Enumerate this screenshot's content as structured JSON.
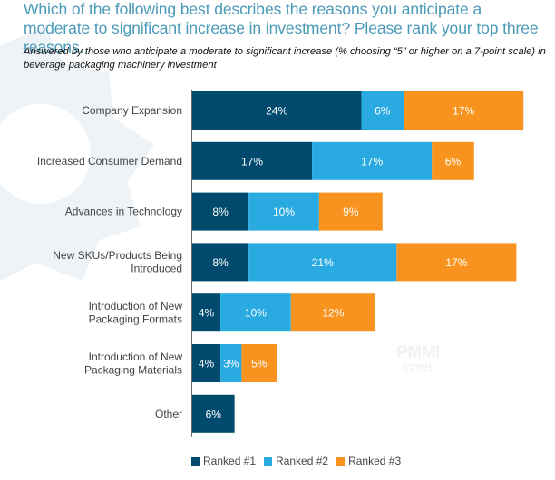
{
  "header": {
    "title": "Which of the following best describes the reasons you anticipate a moderate to significant increase in investment? Please rank your top three reasons.",
    "subtitle": "Answered by those who anticipate a moderate to significant increase (% choosing “5” or higher on a 7-point scale) in beverage packaging machinery investment"
  },
  "watermark": {
    "brand": "PMMI",
    "year": "©2025"
  },
  "colors": {
    "ranked1": "#004a6e",
    "ranked2": "#29abe2",
    "ranked3": "#f7931e",
    "title": "#4a9ab8"
  },
  "chart_data": {
    "type": "bar",
    "orientation": "horizontal",
    "stacked": true,
    "title": "Which of the following best describes the reasons you anticipate a moderate to significant increase in investment? Please rank your top three reasons.",
    "xlabel": "",
    "ylabel": "",
    "unit": "%",
    "grid": false,
    "legend_position": "bottom",
    "categories": [
      [
        "Company Expansion"
      ],
      [
        "Increased Consumer Demand"
      ],
      [
        "Advances in Technology"
      ],
      [
        "New SKUs/Products Being",
        "Introduced"
      ],
      [
        "Introduction of New",
        "Packaging Formats"
      ],
      [
        "Introduction of New",
        "Packaging Materials"
      ],
      [
        "Other"
      ]
    ],
    "series": [
      {
        "name": "Ranked #1",
        "color": "#004a6e",
        "values": [
          24,
          17,
          8,
          8,
          4,
          4,
          6
        ]
      },
      {
        "name": "Ranked #2",
        "color": "#29abe2",
        "values": [
          6,
          17,
          10,
          21,
          10,
          3,
          0
        ]
      },
      {
        "name": "Ranked #3",
        "color": "#f7931e",
        "values": [
          17,
          6,
          9,
          17,
          12,
          5,
          0
        ]
      }
    ],
    "xlim": [
      0,
      47
    ]
  },
  "legend": [
    {
      "label": "Ranked #1",
      "color": "#004a6e"
    },
    {
      "label": "Ranked #2",
      "color": "#29abe2"
    },
    {
      "label": "Ranked #3",
      "color": "#f7931e"
    }
  ]
}
